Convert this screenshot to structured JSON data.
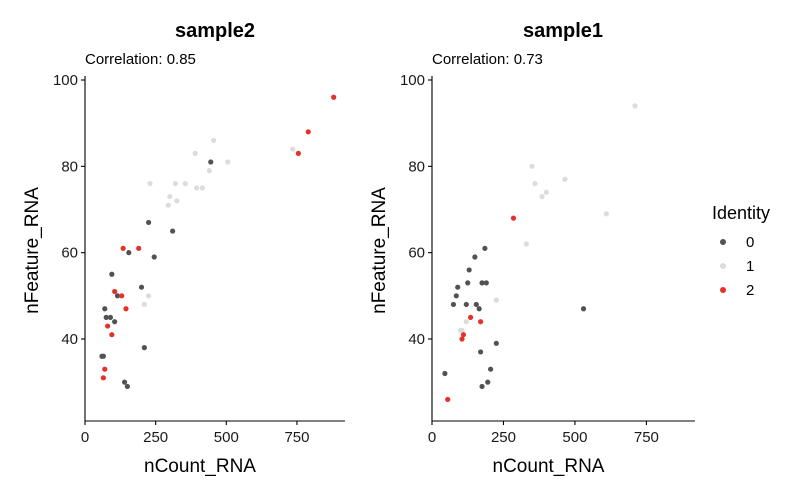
{
  "chart_data": [
    {
      "type": "scatter",
      "title": "sample2",
      "subtitle": "Correlation: 0.85",
      "xlabel": "nCount_RNA",
      "ylabel": "nFeature_RNA",
      "xlim": [
        0,
        920
      ],
      "ylim": [
        21,
        100
      ],
      "xticks": [
        0,
        250,
        500,
        750
      ],
      "yticks": [
        40,
        60,
        80,
        100
      ],
      "series": [
        {
          "name": "0",
          "color": "#555153",
          "points": [
            [
              60,
              36
            ],
            [
              65,
              36
            ],
            [
              70,
              47
            ],
            [
              75,
              45
            ],
            [
              90,
              45
            ],
            [
              95,
              55
            ],
            [
              105,
              44
            ],
            [
              115,
              50
            ],
            [
              140,
              30
            ],
            [
              150,
              29
            ],
            [
              155,
              60
            ],
            [
              200,
              52
            ],
            [
              210,
              38
            ],
            [
              225,
              67
            ],
            [
              245,
              59
            ],
            [
              310,
              65
            ],
            [
              445,
              81
            ]
          ]
        },
        {
          "name": "1",
          "color": "#dcdcdc",
          "points": [
            [
              210,
              48
            ],
            [
              225,
              50
            ],
            [
              230,
              76
            ],
            [
              295,
              71
            ],
            [
              300,
              73
            ],
            [
              320,
              76
            ],
            [
              325,
              72
            ],
            [
              355,
              76
            ],
            [
              390,
              83
            ],
            [
              395,
              75
            ],
            [
              415,
              75
            ],
            [
              440,
              79
            ],
            [
              455,
              86
            ],
            [
              505,
              81
            ],
            [
              735,
              84
            ]
          ]
        },
        {
          "name": "2",
          "color": "#e4322b",
          "points": [
            [
              65,
              31
            ],
            [
              70,
              33
            ],
            [
              80,
              43
            ],
            [
              95,
              41
            ],
            [
              105,
              51
            ],
            [
              130,
              50
            ],
            [
              135,
              61
            ],
            [
              145,
              47
            ],
            [
              190,
              61
            ],
            [
              755,
              83
            ],
            [
              790,
              88
            ],
            [
              880,
              96
            ]
          ]
        }
      ]
    },
    {
      "type": "scatter",
      "title": "sample1",
      "subtitle": "Correlation: 0.73",
      "xlabel": "nCount_RNA",
      "ylabel": "nFeature_RNA",
      "xlim": [
        0,
        920
      ],
      "ylim": [
        21,
        100
      ],
      "xticks": [
        0,
        250,
        500,
        750
      ],
      "yticks": [
        40,
        60,
        80,
        100
      ],
      "series": [
        {
          "name": "0",
          "color": "#555153",
          "points": [
            [
              45,
              32
            ],
            [
              75,
              48
            ],
            [
              85,
              50
            ],
            [
              90,
              52
            ],
            [
              120,
              48
            ],
            [
              125,
              53
            ],
            [
              130,
              56
            ],
            [
              150,
              59
            ],
            [
              155,
              48
            ],
            [
              165,
              47
            ],
            [
              170,
              37
            ],
            [
              175,
              53
            ],
            [
              175,
              29
            ],
            [
              185,
              61
            ],
            [
              190,
              53
            ],
            [
              195,
              30
            ],
            [
              205,
              33
            ],
            [
              225,
              39
            ],
            [
              530,
              47
            ]
          ]
        },
        {
          "name": "1",
          "color": "#dcdcdc",
          "points": [
            [
              100,
              42
            ],
            [
              105,
              42
            ],
            [
              120,
              44
            ],
            [
              225,
              49
            ],
            [
              330,
              62
            ],
            [
              350,
              80
            ],
            [
              360,
              76
            ],
            [
              385,
              73
            ],
            [
              400,
              74
            ],
            [
              465,
              77
            ],
            [
              610,
              69
            ],
            [
              710,
              94
            ]
          ]
        },
        {
          "name": "2",
          "color": "#e4322b",
          "points": [
            [
              55,
              26
            ],
            [
              105,
              40
            ],
            [
              110,
              41
            ],
            [
              135,
              45
            ],
            [
              170,
              44
            ],
            [
              285,
              68
            ]
          ]
        }
      ]
    }
  ],
  "legend": {
    "title": "Identity",
    "items": [
      {
        "label": "0",
        "color": "#555153"
      },
      {
        "label": "1",
        "color": "#dcdcdc"
      },
      {
        "label": "2",
        "color": "#e4322b"
      }
    ]
  }
}
